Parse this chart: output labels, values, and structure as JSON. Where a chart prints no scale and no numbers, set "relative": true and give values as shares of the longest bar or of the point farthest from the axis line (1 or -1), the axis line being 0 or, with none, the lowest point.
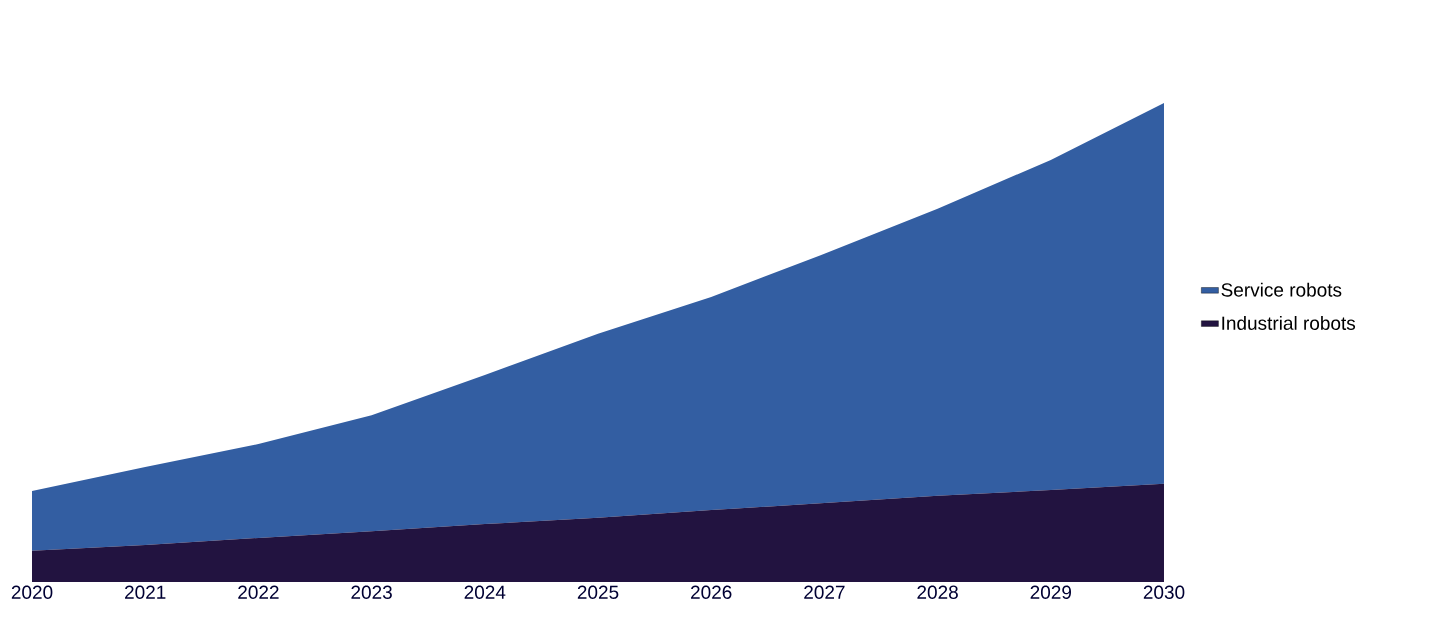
{
  "chart_data": {
    "type": "area",
    "relative": true,
    "stacked": true,
    "legend": "right",
    "categories": [
      "2020",
      "2021",
      "2022",
      "2023",
      "2024",
      "2025",
      "2026",
      "2027",
      "2028",
      "2029",
      "2030"
    ],
    "series": [
      {
        "name": "Industrial robots",
        "color": "#221340",
        "values": [
          0.065,
          0.077,
          0.092,
          0.106,
          0.121,
          0.134,
          0.15,
          0.165,
          0.18,
          0.192,
          0.205
        ]
      },
      {
        "name": "Service robots",
        "color": "#335EA2",
        "values": [
          0.125,
          0.163,
          0.196,
          0.242,
          0.311,
          0.384,
          0.445,
          0.52,
          0.599,
          0.689,
          0.795
        ]
      }
    ]
  }
}
